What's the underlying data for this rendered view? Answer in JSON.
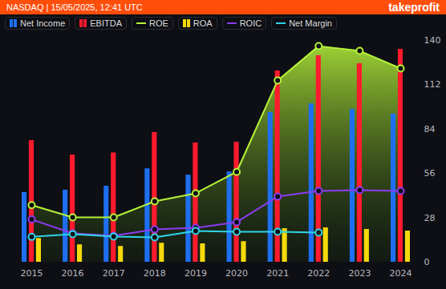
{
  "header": {
    "title": "NASDAQ | 15/05/2025, 12:41 UTC",
    "brand": "takeprofit"
  },
  "chart_data": {
    "type": "bar",
    "categories": [
      "2015",
      "2016",
      "2017",
      "2018",
      "2019",
      "2020",
      "2021",
      "2022",
      "2023",
      "2024"
    ],
    "series": [
      {
        "name": "Net Income",
        "type": "bar",
        "color": "#1e6ff0",
        "values": [
          44,
          45.5,
          48,
          59,
          55,
          57,
          94.5,
          100,
          96.5,
          93.5
        ]
      },
      {
        "name": "EBITDA",
        "type": "bar",
        "color": "#ff1a2e",
        "values": [
          76.8,
          67.7,
          69,
          81.9,
          75.3,
          75.8,
          120.8,
          130.4,
          125.3,
          134.4
        ]
      },
      {
        "name": "ROE",
        "type": "area",
        "marker": "circle",
        "color": "#b5f23a",
        "values": [
          36,
          28.3,
          28.3,
          38.4,
          43.5,
          57,
          114.7,
          136.4,
          133.4,
          122.3
        ]
      },
      {
        "name": "ROA",
        "type": "bar",
        "color": "#f5d90a",
        "values": [
          15,
          11,
          10,
          12,
          11.6,
          13,
          21.2,
          21.7,
          20.7,
          19.7
        ]
      },
      {
        "name": "ROIC",
        "type": "line",
        "marker": "circle",
        "color": "#8c3cf0",
        "values": [
          27,
          18.2,
          16.7,
          20.7,
          21.7,
          25.3,
          41.4,
          45,
          45.5,
          45
        ]
      },
      {
        "name": "Net Margin",
        "type": "line",
        "marker": "circle",
        "color": "#2ed3e6",
        "values": [
          16,
          17.7,
          16.2,
          15.7,
          19.7,
          19.2,
          19.2,
          18.7,
          null,
          null
        ]
      }
    ],
    "ylim": [
      0,
      140
    ],
    "yticks": [
      0,
      28,
      56,
      84,
      112,
      140
    ],
    "grid": false,
    "legend": "top"
  }
}
